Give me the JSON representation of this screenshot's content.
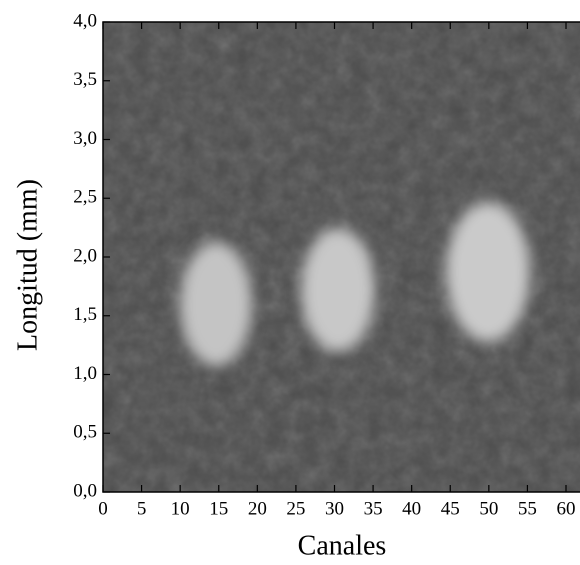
{
  "chart_data": {
    "type": "heatmap",
    "xlabel": "Canales",
    "ylabel": "Longitud  (mm)",
    "xlim": [
      0,
      62
    ],
    "xticks": [
      0,
      5,
      10,
      15,
      20,
      25,
      30,
      35,
      40,
      45,
      50,
      55,
      60
    ],
    "ylim": [
      0,
      4
    ],
    "yticks": [
      {
        "value": 0,
        "label": "0,0"
      },
      {
        "value": 0.5,
        "label": "0,5"
      },
      {
        "value": 1,
        "label": "1,0"
      },
      {
        "value": 1.5,
        "label": "1,5"
      },
      {
        "value": 2,
        "label": "2,0"
      },
      {
        "value": 2.5,
        "label": "2,5"
      },
      {
        "value": 3,
        "label": "3,0"
      },
      {
        "value": 3.5,
        "label": "3,5"
      },
      {
        "value": 4,
        "label": "4,0"
      }
    ],
    "colormap": "gray"
  }
}
